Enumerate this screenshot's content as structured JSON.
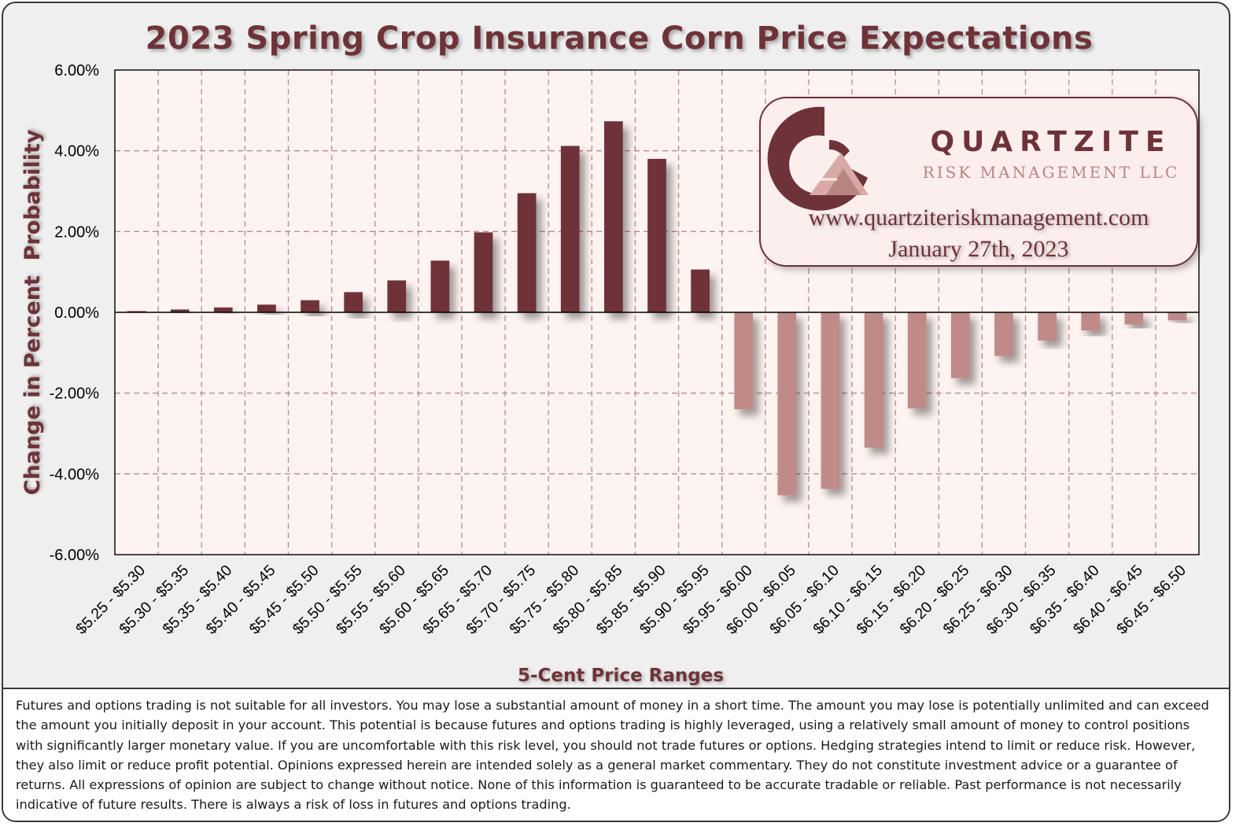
{
  "title": "2023 Spring Crop Insurance Corn Price Expectations",
  "logo": {
    "brand": "QUARTZITE",
    "subtitle": "RISK MANAGEMENT LLC",
    "website": "www.quartziteriskmanagement.com",
    "date": "January 27th, 2023"
  },
  "colors": {
    "positive_bar": "#6e3338",
    "negative_bar": "#c08a88",
    "plot_bg": "#fdf3f1",
    "grid": "#b88c8d",
    "title": "#6e3338"
  },
  "chart_data": {
    "type": "bar",
    "title": "2023 Spring Crop Insurance Corn Price Expectations",
    "xlabel": "5-Cent Price Ranges",
    "ylabel": "Change in Percent  Probability",
    "ylim": [
      -6,
      6
    ],
    "yticks": [
      6,
      4,
      2,
      0,
      -2,
      -4,
      -6
    ],
    "ytick_labels": [
      "6.00%",
      "4.00%",
      "2.00%",
      "0.00%",
      "-2.00%",
      "-4.00%",
      "-6.00%"
    ],
    "grid": true,
    "categories": [
      "$5.25 - $5.30",
      "$5.30 - $5.35",
      "$5.35 - $5.40",
      "$5.40 - $5.45",
      "$5.45 - $5.50",
      "$5.50 - $5.55",
      "$5.55 - $5.60",
      "$5.60 - $5.65",
      "$5.65 - $5.70",
      "$5.70 - $5.75",
      "$5.75 - $5.80",
      "$5.80 - $5.85",
      "$5.85 - $5.90",
      "$5.90 - $5.95",
      "$5.95 - $6.00",
      "$6.00 - $6.05",
      "$6.05 - $6.10",
      "$6.10 - $6.15",
      "$6.15 - $6.20",
      "$6.20 - $6.25",
      "$6.25 - $6.30",
      "$6.30 - $6.35",
      "$6.35 - $6.40",
      "$6.40 - $6.45",
      "$6.45 - $6.50"
    ],
    "values": [
      0.03,
      0.07,
      0.12,
      0.19,
      0.3,
      0.5,
      0.79,
      1.28,
      1.98,
      2.95,
      4.12,
      4.73,
      3.8,
      1.06,
      -2.4,
      -4.53,
      -4.37,
      -3.35,
      -2.38,
      -1.63,
      -1.08,
      -0.7,
      -0.45,
      -0.3,
      -0.2
    ]
  },
  "disclaimer": "Futures and options trading is not suitable for all investors. You may lose a substantial amount of money in a short time. The amount you may lose is potentially unlimited and can exceed the amount you initially deposit in your account. This potential is because futures and options trading is highly leveraged, using a relatively small amount of money to control positions with significantly larger monetary value. If you are uncomfortable with this risk level, you should not trade futures or options. Hedging strategies intend to limit or reduce risk. However, they also limit or reduce profit potential. Opinions expressed herein are intended solely as a general market commentary. They do not constitute investment advice or a guarantee of returns. All expressions of opinion are subject to change without notice. None of this information is guaranteed to be accurate tradable or reliable. Past performance is not necessarily indicative of future results. There is always a risk of loss in futures and options trading."
}
